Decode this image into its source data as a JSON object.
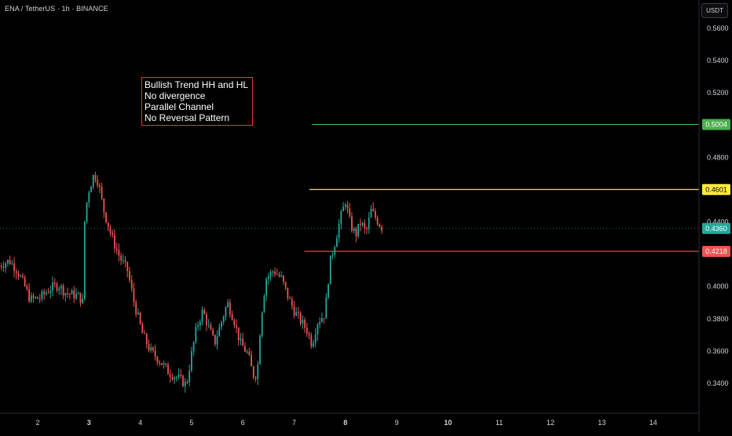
{
  "header": {
    "symbol_title": "ENA / TetherUS · 1h · BINANCE",
    "currency_button": "USDT"
  },
  "annotation": {
    "lines": [
      "Bullish Trend HH and HL",
      "No divergence",
      "Parallel Channel",
      "No Reversal Pattern"
    ],
    "border_color": "#e53935"
  },
  "colors": {
    "background": "#000000",
    "up_candle": "#26a69a",
    "down_candle": "#ef5350",
    "axis_text": "#d1d4dc",
    "green_level": "#4caf50",
    "yellow_level": "#ffeb3b",
    "red_level": "#f05350",
    "current_price": "#26a69a"
  },
  "chart_data": {
    "type": "candlestick",
    "x_tick_labels": [
      "2",
      "3",
      "4",
      "5",
      "6",
      "7",
      "8",
      "9",
      "10",
      "11",
      "12",
      "13",
      "14"
    ],
    "y_tick_labels": [
      "0.5600",
      "0.5400",
      "0.5200",
      "0.4800",
      "0.4400",
      "0.4000",
      "0.3800",
      "0.3600",
      "0.3400"
    ],
    "y_range": [
      0.3265,
      0.57
    ],
    "x_range": [
      1.25,
      15.0
    ],
    "horizontal_levels": [
      {
        "label": "0.5004",
        "value": 0.5004,
        "color": "#4caf50",
        "x_start": 7.35
      },
      {
        "label": "0.4601",
        "value": 0.4601,
        "color": "#ffeb3b",
        "x_start": 7.3
      },
      {
        "label": "0.4218",
        "value": 0.4218,
        "color": "#f05350",
        "x_start": 7.2
      }
    ],
    "current_price": {
      "label": "0.4360",
      "value": 0.436
    },
    "price_path": [
      [
        1.25,
        0.413
      ],
      [
        1.45,
        0.416
      ],
      [
        1.6,
        0.41
      ],
      [
        1.75,
        0.4
      ],
      [
        1.85,
        0.392
      ],
      [
        2.05,
        0.393
      ],
      [
        2.25,
        0.399
      ],
      [
        2.4,
        0.401
      ],
      [
        2.55,
        0.396
      ],
      [
        2.8,
        0.394
      ],
      [
        2.88,
        0.39
      ],
      [
        2.92,
        0.445
      ],
      [
        3.0,
        0.46
      ],
      [
        3.1,
        0.47
      ],
      [
        3.18,
        0.465
      ],
      [
        3.28,
        0.448
      ],
      [
        3.45,
        0.43
      ],
      [
        3.6,
        0.418
      ],
      [
        3.75,
        0.41
      ],
      [
        3.88,
        0.39
      ],
      [
        4.05,
        0.37
      ],
      [
        4.2,
        0.36
      ],
      [
        4.38,
        0.354
      ],
      [
        4.55,
        0.347
      ],
      [
        4.75,
        0.343
      ],
      [
        4.9,
        0.339
      ],
      [
        5.0,
        0.358
      ],
      [
        5.1,
        0.375
      ],
      [
        5.22,
        0.385
      ],
      [
        5.35,
        0.373
      ],
      [
        5.45,
        0.365
      ],
      [
        5.6,
        0.38
      ],
      [
        5.7,
        0.39
      ],
      [
        5.82,
        0.38
      ],
      [
        5.95,
        0.365
      ],
      [
        6.1,
        0.358
      ],
      [
        6.2,
        0.345
      ],
      [
        6.28,
        0.346
      ],
      [
        6.35,
        0.38
      ],
      [
        6.45,
        0.405
      ],
      [
        6.6,
        0.41
      ],
      [
        6.75,
        0.405
      ],
      [
        6.9,
        0.392
      ],
      [
        7.0,
        0.385
      ],
      [
        7.1,
        0.38
      ],
      [
        7.25,
        0.373
      ],
      [
        7.35,
        0.364
      ],
      [
        7.45,
        0.378
      ],
      [
        7.6,
        0.383
      ],
      [
        7.7,
        0.415
      ],
      [
        7.8,
        0.428
      ],
      [
        7.9,
        0.442
      ],
      [
        8.0,
        0.453
      ],
      [
        8.1,
        0.438
      ],
      [
        8.2,
        0.432
      ],
      [
        8.3,
        0.44
      ],
      [
        8.4,
        0.433
      ],
      [
        8.5,
        0.447
      ],
      [
        8.6,
        0.442
      ],
      [
        8.72,
        0.436
      ]
    ]
  }
}
